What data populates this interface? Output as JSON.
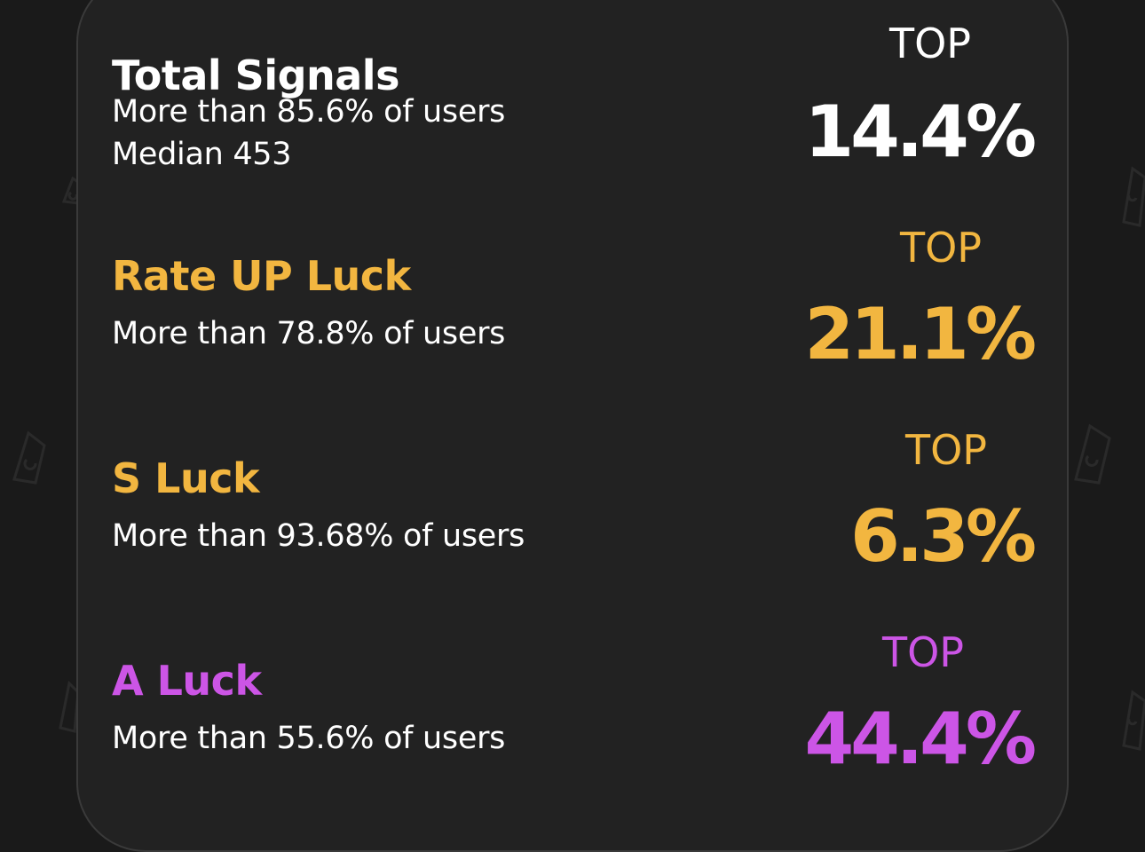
{
  "colors": {
    "white": "#ffffff",
    "gold": "#f2b640",
    "purple": "#cc55e6"
  },
  "stats": [
    {
      "title": "Total Signals",
      "desc_lines": [
        "More than 85.6% of users",
        "Median 453"
      ],
      "rank_label": "TOP",
      "rank_value": "14.4%",
      "color": "white"
    },
    {
      "title": "Rate UP Luck",
      "desc_lines": [
        "More than 78.8% of users"
      ],
      "rank_label": "TOP",
      "rank_value": "21.1%",
      "color": "gold"
    },
    {
      "title": "S Luck",
      "desc_lines": [
        "More than 93.68% of users"
      ],
      "rank_label": "TOP",
      "rank_value": "6.3%",
      "color": "gold"
    },
    {
      "title": "A Luck",
      "desc_lines": [
        "More than 55.6% of users"
      ],
      "rank_label": "TOP",
      "rank_value": "44.4%",
      "color": "purple"
    }
  ]
}
